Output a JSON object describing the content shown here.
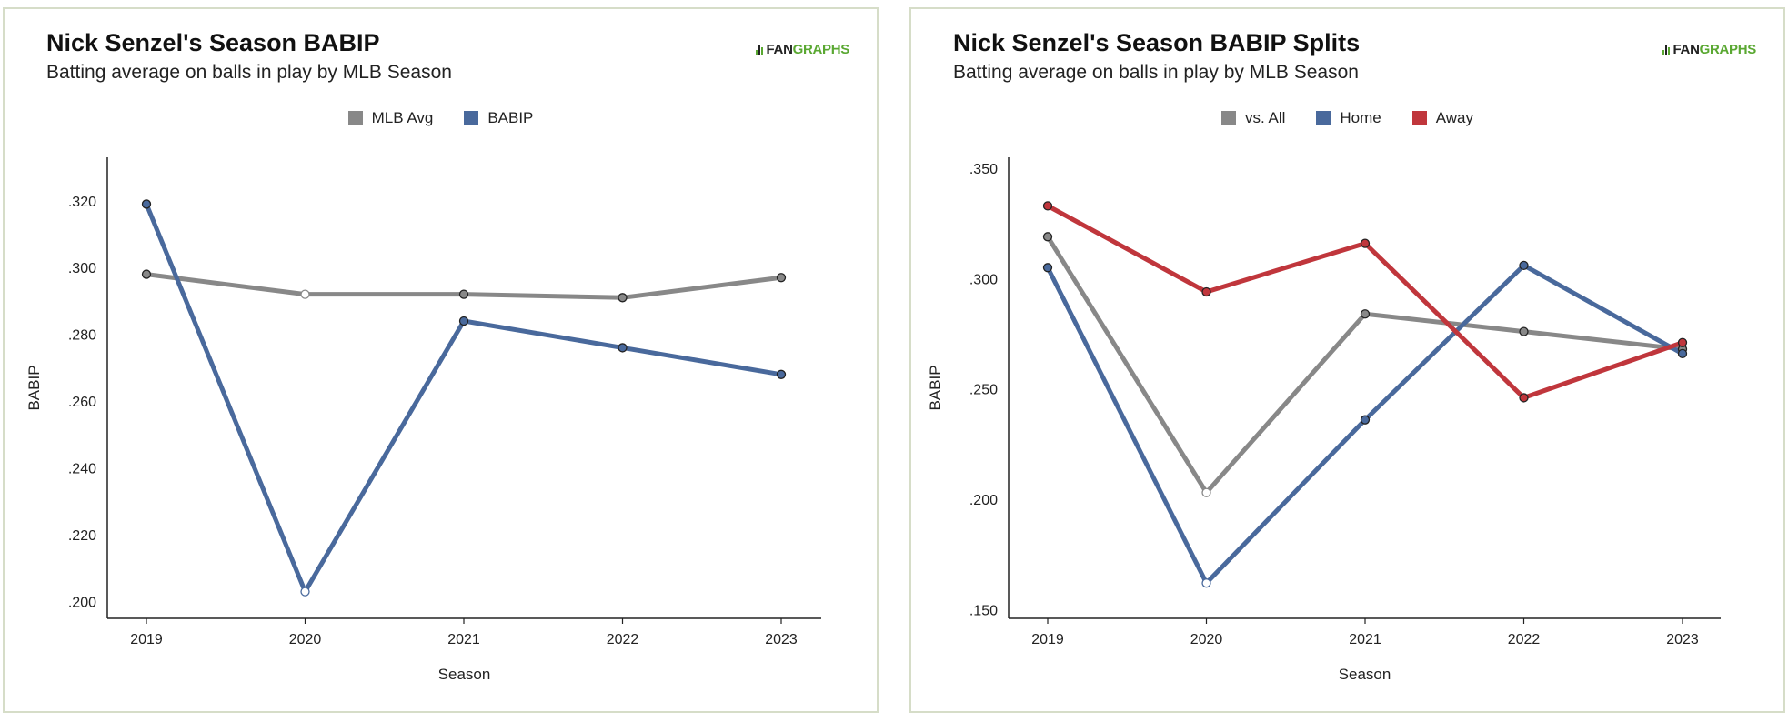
{
  "chart_data": [
    {
      "type": "line",
      "title": "Nick Senzel's Season BABIP",
      "subtitle": "Batting average on balls in play by MLB Season",
      "logo": "FANGRAPHS",
      "xlabel": "Season",
      "ylabel": "BABIP",
      "ylim": [
        0.195,
        0.333
      ],
      "y_ticks": [
        ".200",
        ".220",
        ".240",
        ".260",
        ".280",
        ".300",
        ".320"
      ],
      "y_tick_values": [
        0.2,
        0.22,
        0.24,
        0.26,
        0.28,
        0.3,
        0.32
      ],
      "x": [
        "2019",
        "2020",
        "2021",
        "2022",
        "2023"
      ],
      "legend_position": "top-center",
      "series": [
        {
          "name": "MLB Avg",
          "color": "#888888",
          "values": [
            0.298,
            0.292,
            0.292,
            0.291,
            0.297
          ],
          "hollow": [
            false,
            true,
            false,
            false,
            false
          ]
        },
        {
          "name": "BABIP",
          "color": "#49699c",
          "values": [
            0.319,
            0.203,
            0.284,
            0.276,
            0.268
          ],
          "hollow": [
            false,
            true,
            false,
            false,
            false
          ]
        }
      ]
    },
    {
      "type": "line",
      "title": "Nick Senzel's Season BABIP Splits",
      "subtitle": "Batting average on balls in play by MLB Season",
      "logo": "FANGRAPHS",
      "xlabel": "Season",
      "ylabel": "BABIP",
      "ylim": [
        0.15,
        0.35
      ],
      "y_ticks": [
        ".150",
        ".200",
        ".250",
        ".300",
        ".350"
      ],
      "y_tick_values": [
        0.15,
        0.2,
        0.25,
        0.3,
        0.35
      ],
      "x": [
        "2019",
        "2020",
        "2021",
        "2022",
        "2023"
      ],
      "legend_position": "top-center",
      "series": [
        {
          "name": "vs. All",
          "color": "#888888",
          "values": [
            0.319,
            0.203,
            0.284,
            0.276,
            0.268
          ],
          "hollow": [
            false,
            true,
            false,
            false,
            false
          ]
        },
        {
          "name": "Home",
          "color": "#49699c",
          "values": [
            0.305,
            0.162,
            0.236,
            0.306,
            0.266
          ],
          "hollow": [
            false,
            true,
            false,
            false,
            false
          ]
        },
        {
          "name": "Away",
          "color": "#c0363c",
          "values": [
            0.333,
            0.294,
            0.316,
            0.246,
            0.271
          ],
          "hollow": [
            false,
            false,
            false,
            false,
            false
          ]
        }
      ]
    }
  ]
}
